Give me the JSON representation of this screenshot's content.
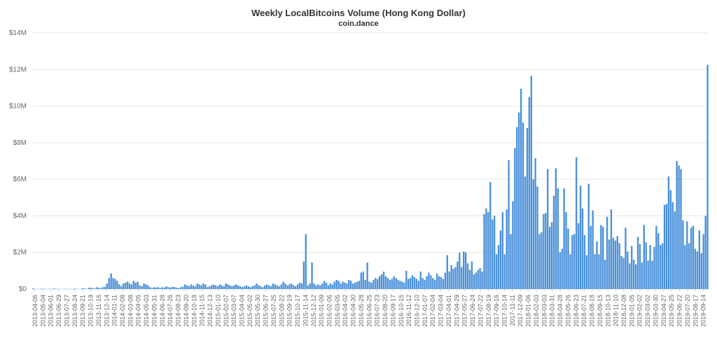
{
  "chart_data": {
    "type": "bar",
    "title": "Weekly LocalBitcoins Volume (Hong Kong Dollar)",
    "subtitle": "coin.dance",
    "xlabel": "",
    "ylabel": "",
    "ylim": [
      0,
      14000000
    ],
    "grid": true,
    "legend": "none",
    "bar_color": "#4a90d9",
    "y_ticks": [
      "$0",
      "$2M",
      "$4M",
      "$6M",
      "$8M",
      "$10M",
      "$12M",
      "$14M"
    ],
    "x_tick_labels": [
      "2013-04-06",
      "2013-05-04",
      "2013-06-01",
      "2013-06-29",
      "2013-07-27",
      "2013-08-24",
      "2013-09-21",
      "2013-10-19",
      "2013-11-16",
      "2013-12-14",
      "2014-01-11",
      "2014-02-08",
      "2014-03-08",
      "2014-04-05",
      "2014-05-03",
      "2014-05-31",
      "2014-06-28",
      "2014-07-26",
      "2014-08-23",
      "2014-09-20",
      "2014-10-18",
      "2014-11-15",
      "2014-12-13",
      "2015-01-10",
      "2015-02-07",
      "2015-03-07",
      "2015-04-04",
      "2015-05-02",
      "2015-05-30",
      "2015-06-27",
      "2015-07-25",
      "2015-08-22",
      "2015-09-19",
      "2015-10-17",
      "2015-11-14",
      "2015-12-12",
      "2016-01-09",
      "2016-02-06",
      "2016-03-05",
      "2016-04-02",
      "2016-04-30",
      "2016-05-28",
      "2016-06-25",
      "2016-07-23",
      "2016-08-20",
      "2016-09-17",
      "2016-10-15",
      "2016-11-12",
      "2016-12-10",
      "2017-01-07",
      "2017-02-04",
      "2017-03-04",
      "2017-04-01",
      "2017-04-29",
      "2017-05-27",
      "2017-06-24",
      "2017-07-22",
      "2017-08-19",
      "2017-09-16",
      "2017-10-14",
      "2017-11-11",
      "2017-12-09",
      "2018-01-06",
      "2018-02-03",
      "2018-03-03",
      "2018-03-31",
      "2018-04-28",
      "2018-05-26",
      "2018-06-23",
      "2018-07-21",
      "2018-08-18",
      "2018-09-15",
      "2018-10-13",
      "2018-11-10",
      "2018-12-08",
      "2019-01-05",
      "2019-02-02",
      "2019-03-02",
      "2019-03-30",
      "2019-04-27",
      "2019-05-25",
      "2019-06-22",
      "2019-07-20",
      "2019-08-17",
      "2019-09-14"
    ],
    "values": [
      0.05,
      0,
      0,
      0,
      0.02,
      0.01,
      0,
      0,
      0.01,
      0,
      0.03,
      0.02,
      0,
      0,
      0,
      0.01,
      0,
      0,
      0,
      0,
      0.02,
      0.01,
      0,
      0,
      0.05,
      0.03,
      0,
      0.06,
      0.08,
      0.05,
      0.03,
      0.1,
      0.07,
      0.05,
      0.1,
      0.12,
      0.3,
      0.6,
      0.85,
      0.6,
      0.55,
      0.45,
      0.25,
      0.15,
      0.3,
      0.35,
      0.4,
      0.3,
      0.25,
      0.45,
      0.35,
      0.4,
      0.2,
      0.15,
      0.3,
      0.25,
      0.2,
      0.1,
      0.05,
      0.1,
      0.08,
      0.1,
      0.05,
      0.1,
      0.08,
      0.15,
      0.1,
      0.08,
      0.12,
      0.1,
      0.08,
      0.05,
      0.1,
      0.12,
      0.25,
      0.2,
      0.15,
      0.25,
      0.2,
      0.15,
      0.3,
      0.25,
      0.2,
      0.3,
      0.25,
      0.1,
      0.15,
      0.2,
      0.25,
      0.2,
      0.15,
      0.25,
      0.2,
      0.15,
      0.3,
      0.25,
      0.2,
      0.15,
      0.2,
      0.25,
      0.2,
      0.15,
      0.1,
      0.15,
      0.2,
      0.15,
      0.1,
      0.15,
      0.2,
      0.3,
      0.2,
      0.15,
      0.1,
      0.2,
      0.25,
      0.2,
      0.15,
      0.3,
      0.25,
      0.2,
      0.15,
      0.25,
      0.4,
      0.3,
      0.2,
      0.25,
      0.3,
      0.2,
      0.15,
      0.25,
      0.35,
      0.3,
      1.5,
      3.0,
      0.2,
      0.3,
      1.45,
      0.3,
      0.2,
      0.25,
      0.2,
      0.3,
      0.45,
      0.35,
      0.2,
      0.3,
      0.25,
      0.4,
      0.5,
      0.45,
      0.3,
      0.4,
      0.35,
      0.3,
      0.5,
      0.45,
      0.3,
      0.35,
      0.4,
      0.45,
      0.9,
      0.95,
      0.5,
      1.45,
      0.4,
      0.35,
      0.5,
      0.6,
      0.55,
      0.7,
      0.8,
      0.95,
      0.7,
      0.6,
      0.5,
      0.55,
      0.7,
      0.6,
      0.5,
      0.45,
      0.4,
      0.35,
      1.0,
      0.55,
      0.6,
      0.75,
      0.65,
      0.55,
      0.45,
      0.95,
      0.6,
      0.5,
      0.7,
      0.9,
      0.75,
      0.6,
      0.5,
      0.85,
      0.7,
      0.65,
      0.55,
      0.9,
      1.85,
      0.95,
      1.3,
      1.1,
      1.2,
      1.5,
      2.0,
      1.2,
      2.05,
      2.0,
      1.4,
      1.05,
      1.5,
      0.8,
      0.9,
      1.05,
      1.15,
      0.95,
      4.1,
      4.4,
      4.2,
      5.85,
      3.8,
      4.0,
      1.9,
      2.4,
      3.2,
      4.2,
      1.9,
      4.35,
      7.05,
      3.0,
      4.8,
      7.7,
      8.85,
      9.65,
      10.95,
      9.1,
      6.15,
      8.8,
      10.5,
      11.65,
      6.0,
      7.15,
      5.6,
      3.0,
      3.1,
      4.1,
      4.15,
      6.55,
      3.4,
      3.65,
      5.1,
      6.6,
      5.5,
      2.0,
      2.2,
      5.5,
      4.2,
      3.3,
      1.9,
      2.95,
      3.0,
      7.2,
      3.6,
      5.65,
      4.4,
      2.95,
      1.85,
      5.75,
      3.45,
      4.3,
      1.9,
      2.6,
      1.9,
      3.5,
      3.4,
      1.6,
      3.95,
      2.7,
      4.35,
      2.8,
      2.65,
      2.9,
      2.5,
      1.8,
      1.7,
      3.35,
      2.05,
      1.4,
      2.35,
      1.6,
      1.35,
      2.85,
      2.45,
      1.45,
      3.5,
      2.55,
      1.55,
      2.4,
      1.55,
      2.3,
      3.45,
      3.05,
      2.4,
      2.5,
      4.6,
      4.65,
      6.15,
      5.4,
      4.75,
      4.25,
      7.0,
      6.75,
      6.55,
      3.75,
      2.4,
      3.7,
      2.5,
      3.35,
      3.45,
      2.2,
      2.05,
      3.2,
      1.95,
      3.0,
      4.0,
      12.25
    ]
  }
}
